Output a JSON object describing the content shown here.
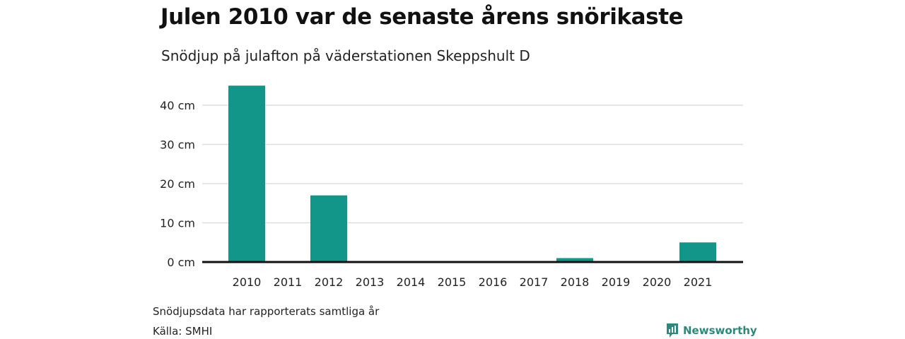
{
  "title": "Julen 2010 var de senaste årens snörikaste",
  "subtitle": "Snödjup på julafton på väderstationen Skeppshult D",
  "footnote": "Snödjupsdata har rapporterats samtliga år",
  "source": "Källa: SMHI",
  "brand": {
    "name": "Newsworthy",
    "icon": "newsworthy-logo-icon"
  },
  "colors": {
    "bar": "#13968a",
    "grid": "#dddddd",
    "axis": "#111111",
    "brand": "#2b8a7d"
  },
  "chart_data": {
    "type": "bar",
    "categories": [
      "2010",
      "2011",
      "2012",
      "2013",
      "2014",
      "2015",
      "2016",
      "2017",
      "2018",
      "2019",
      "2020",
      "2021"
    ],
    "values": [
      45,
      0,
      17,
      0,
      0,
      0,
      0,
      0,
      1,
      0,
      0,
      5
    ],
    "ylim": [
      0,
      45
    ],
    "yticks": [
      0,
      10,
      20,
      30,
      40
    ],
    "ytick_labels": [
      "0 cm",
      "10 cm",
      "20 cm",
      "30 cm",
      "40 cm"
    ],
    "ylabel": "",
    "xlabel": "",
    "grid": true
  }
}
